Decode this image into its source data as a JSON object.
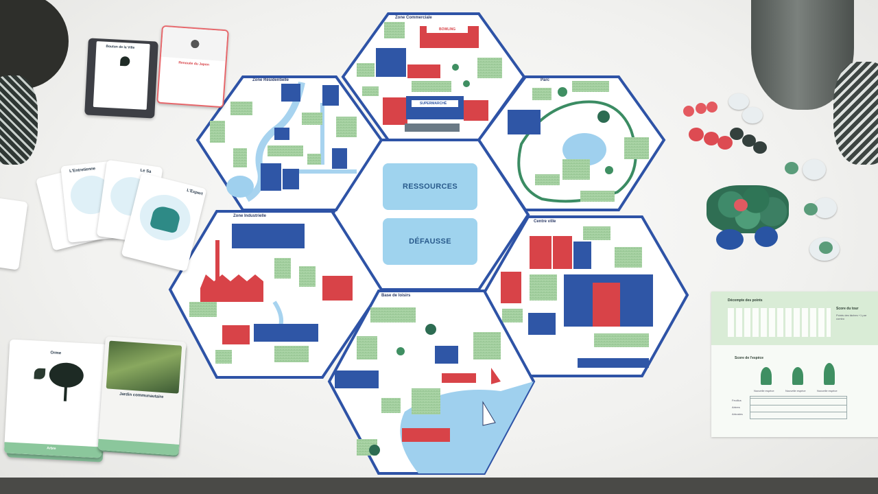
{
  "scene": "board-game-table",
  "board": {
    "center": {
      "slot_top": "RESSOURCES",
      "slot_bottom": "DÉFAUSSE"
    },
    "zones": [
      {
        "id": "commerciale",
        "label": "Zone Commerciale"
      },
      {
        "id": "residentielle",
        "label": "Zone Résidentielle"
      },
      {
        "id": "parc",
        "label": "Parc"
      },
      {
        "id": "industrielle",
        "label": "Zone Industrielle"
      },
      {
        "id": "centre",
        "label": "Centre ville"
      },
      {
        "id": "loisirs",
        "label": "Base de loisirs"
      }
    ],
    "signs": {
      "supermarket": "SUPERMARCHÉ",
      "shop": "BOWLING"
    }
  },
  "cards": {
    "elm": {
      "title": "Orme",
      "footer": "Arbre"
    },
    "garden": {
      "title": "Jardin communautaire"
    },
    "fan": {
      "titles": [
        "L'Entretienne",
        "Le Sa",
        "L'Expert"
      ]
    },
    "top_left": {
      "title": "Bouton de la Ville",
      "subtitle": "Renouée du Japon"
    }
  },
  "score_sheet": {
    "title": "Décompte des points",
    "side_title": "Score du tour",
    "side_note": "Points des tâches +1 par combo",
    "species_title": "Score de l'espèce",
    "columns": [
      "Nouvelle espèce",
      "Nouvelle espèce",
      "Nouvelle espèce"
    ],
    "rows": [
      "Feuillus",
      "Arbres",
      "Arbustes"
    ]
  },
  "colors": {
    "hex_border": "#2e53a6",
    "grass": "#a9d3a5",
    "water": "#9fd0ee",
    "red_building": "#d84348",
    "blue_building": "#2f56a6",
    "slot": "#9fd3ee"
  }
}
